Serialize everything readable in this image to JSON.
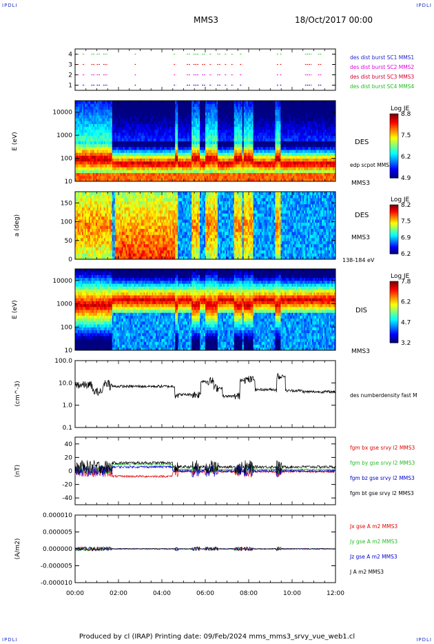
{
  "header": {
    "corner_label": "IPDLI",
    "mission": "MMS3",
    "datetime": "18/Oct/2017 00:00"
  },
  "footer": {
    "text": "Produced by cl (IRAP)   Printing date: 09/Feb/2024   mms_mms3_srvy_vue_web1.cl"
  },
  "time_axis": {
    "range_hours": [
      0,
      12
    ],
    "tick_labels": [
      "00:00",
      "02:00",
      "04:00",
      "06:00",
      "08:00",
      "10:00",
      "12:00"
    ]
  },
  "colors": {
    "red": "#ff0000",
    "green": "#22cc22",
    "blue": "#0000ff",
    "black": "#000000",
    "magenta": "#e000e0",
    "darkred": "#cc0033",
    "legend_green": "#22bb22",
    "legend_blue": "#0000cc"
  },
  "chart_data": [
    {
      "type": "scatter",
      "id": "burst",
      "yticks": [
        "1",
        "2",
        "3",
        "4"
      ],
      "ylim": [
        0.5,
        4.5
      ],
      "legend": [
        {
          "text": "des dist burst SC1 MMS1",
          "color": "#2222cc"
        },
        {
          "text": "des dist burst SC2 MMS2",
          "color": "#e000e0"
        },
        {
          "text": "des dist burst SC3 MMS3",
          "color": "#cc0033"
        },
        {
          "text": "des dist burst SC4 MMS4",
          "color": "#22bb22"
        }
      ],
      "series": [
        {
          "level": 4,
          "color": "#22cc22"
        },
        {
          "level": 3,
          "color": "#dd0000"
        },
        {
          "level": 2,
          "color": "#e000e0"
        },
        {
          "level": 1,
          "color": "#0000cc"
        }
      ],
      "intervals_hours": [
        [
          0.1,
          0.15
        ],
        [
          0.35,
          0.45
        ],
        [
          0.75,
          0.9
        ],
        [
          1.0,
          1.15
        ],
        [
          1.3,
          1.5
        ],
        [
          2.75,
          2.8
        ],
        [
          4.55,
          4.65
        ],
        [
          5.15,
          5.3
        ],
        [
          5.45,
          5.7
        ],
        [
          5.85,
          6.0
        ],
        [
          6.2,
          6.3
        ],
        [
          6.55,
          6.7
        ],
        [
          6.9,
          7.0
        ],
        [
          7.2,
          7.3
        ],
        [
          7.6,
          7.7
        ],
        [
          9.3,
          9.35
        ],
        [
          9.45,
          9.5
        ],
        [
          10.6,
          10.9
        ],
        [
          11.2,
          11.35
        ]
      ]
    },
    {
      "type": "heatmap",
      "id": "des_energy",
      "ylabel": "E (eV)",
      "yticks": [
        "10",
        "100",
        "1000",
        "10000"
      ],
      "ylim_log": [
        1,
        4.5
      ],
      "label": "DES",
      "overlay_label": "edp scpot MMS3",
      "sc_label": "MMS3",
      "colorbar": {
        "title": "Log JE",
        "ticks": [
          "8.8",
          "7.5",
          "6.2",
          "4.9"
        ]
      }
    },
    {
      "type": "heatmap",
      "id": "des_pitch",
      "ylabel": "a (deg)",
      "yticks": [
        "0",
        "50",
        "100",
        "150"
      ],
      "ylim": [
        0,
        180
      ],
      "label": "DES",
      "sc_label": "MMS3",
      "energy_label": "138-184 eV",
      "colorbar": {
        "title": "Log JE",
        "ticks": [
          "8.2",
          "7.5",
          "6.9",
          "6.2"
        ]
      }
    },
    {
      "type": "heatmap",
      "id": "dis_energy",
      "ylabel": "E (eV)",
      "yticks": [
        "10",
        "100",
        "1000",
        "10000"
      ],
      "ylim_log": [
        1,
        4.5
      ],
      "label": "DIS",
      "sc_label": "MMS3",
      "colorbar": {
        "title": "Log JE",
        "ticks": [
          "7.8",
          "6.2",
          "4.7",
          "3.2"
        ]
      }
    },
    {
      "type": "line",
      "id": "density",
      "ylabel": "(cm^-3)",
      "yticks": [
        "0.1",
        "1.0",
        "10.0",
        "100.0"
      ],
      "ylim_log": [
        -1,
        2
      ],
      "legend": [
        {
          "text": "des numberdensity fast M",
          "color": "#000000"
        }
      ],
      "levels": [
        [
          0,
          8
        ],
        [
          0.8,
          4
        ],
        [
          1.3,
          10
        ],
        [
          1.6,
          7
        ],
        [
          4.5,
          7
        ],
        [
          4.6,
          3
        ],
        [
          5.8,
          12
        ],
        [
          6.4,
          6
        ],
        [
          6.8,
          2.5
        ],
        [
          7.6,
          14
        ],
        [
          8.3,
          5
        ],
        [
          9.3,
          20
        ],
        [
          9.7,
          4.5
        ],
        [
          10.5,
          4
        ],
        [
          12,
          3.5
        ]
      ]
    },
    {
      "type": "line",
      "id": "magnetic_field",
      "ylabel": "(nT)",
      "yticks": [
        "-40",
        "-20",
        "0",
        "20",
        "40"
      ],
      "ylim": [
        -50,
        50
      ],
      "legend": [
        {
          "text": "fgm bx gse srvy l2 MMS3",
          "color": "#dd0000"
        },
        {
          "text": "fgm by gse srvy l2 MMS3",
          "color": "#22bb22"
        },
        {
          "text": "fgm bz gse srvy l2 MMS3",
          "color": "#0000cc"
        },
        {
          "text": "fgm bt gse srvy l2 MMS3",
          "color": "#000000"
        }
      ]
    },
    {
      "type": "line",
      "id": "current_density",
      "ylabel": "(A/m2)",
      "yticks": [
        "-0.000010",
        "-0.000005",
        "0.000000",
        "0.000005",
        "0.000010"
      ],
      "ylim": [
        -1e-05,
        1e-05
      ],
      "legend": [
        {
          "text": "Jx gse A m2 MMS3",
          "color": "#dd0000"
        },
        {
          "text": "Jy gse A m2 MMS3",
          "color": "#22bb22"
        },
        {
          "text": "Jz gse A m2 MMS3",
          "color": "#0000cc"
        },
        {
          "text": "J A m2 MMS3",
          "color": "#000000"
        }
      ]
    }
  ]
}
